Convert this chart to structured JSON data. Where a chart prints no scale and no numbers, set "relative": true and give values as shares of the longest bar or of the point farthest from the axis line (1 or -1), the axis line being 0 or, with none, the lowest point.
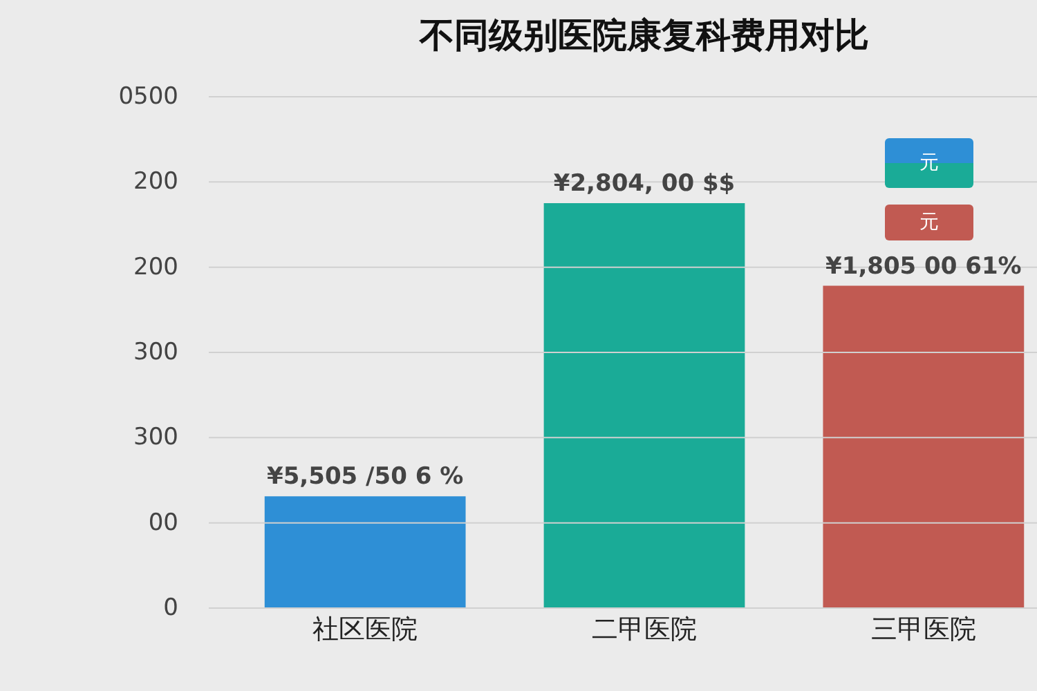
{
  "chart_data": {
    "type": "bar",
    "title": "不同级别医院康复科费用对比",
    "categories": [
      "社区医院",
      "二甲医院",
      "三甲医院"
    ],
    "values": [
      0.276,
      1,
      0.796
    ],
    "relative": true,
    "colors": [
      "#2e8fd6",
      "#1aab97",
      "#c15a52"
    ],
    "grid": "y",
    "annotations": [
      {
        "text": "¥5,505 /50 6 %",
        "x": "社区医院",
        "y": 0.276
      },
      {
        "text": "¥2,804, 00 $$",
        "x": "二甲医院",
        "y": 1
      },
      {
        "text": "¥1,805 00 61%",
        "x": "三甲医院",
        "y": 0.796
      },
      "0",
      "00",
      "300",
      "300",
      "200",
      "200",
      "0500",
      "元",
      "元"
    ]
  }
}
